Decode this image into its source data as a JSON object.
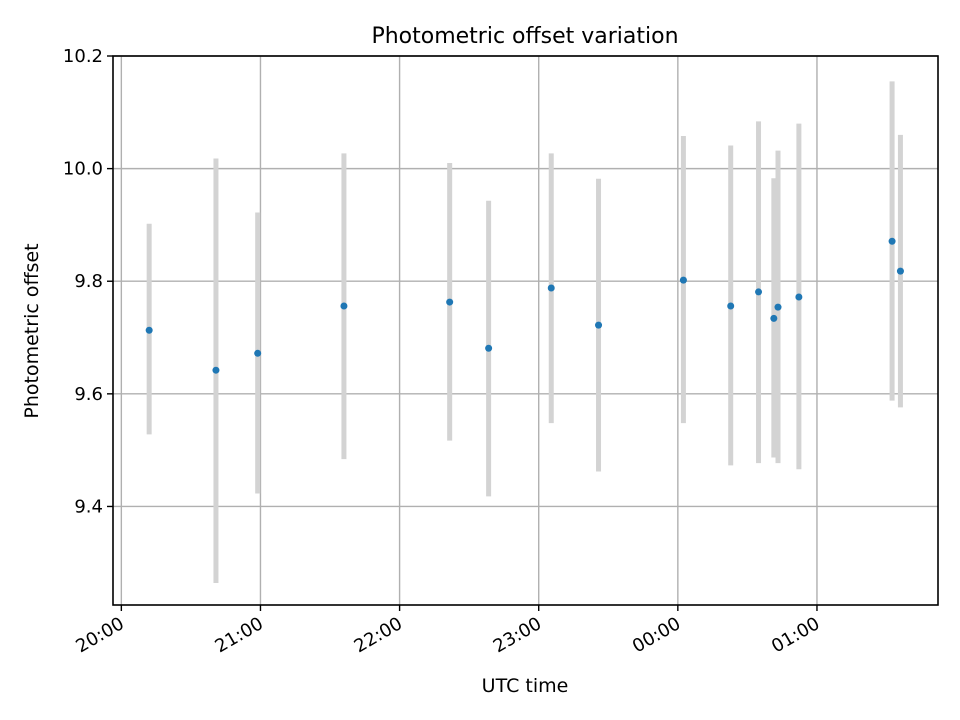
{
  "chart_data": {
    "type": "scatter",
    "title": "Photometric offset variation",
    "xlabel": "UTC time",
    "ylabel": "Photometric offset",
    "grid": true,
    "x_unit": "hours since 20:00 UTC",
    "xlim": [
      -0.06,
      5.87
    ],
    "ylim": [
      9.225,
      10.2
    ],
    "x_ticks": [
      {
        "value": 0,
        "label": "20:00"
      },
      {
        "value": 1,
        "label": "21:00"
      },
      {
        "value": 2,
        "label": "22:00"
      },
      {
        "value": 3,
        "label": "23:00"
      },
      {
        "value": 4,
        "label": "00:00"
      },
      {
        "value": 5,
        "label": "01:00"
      }
    ],
    "y_ticks": [
      {
        "value": 9.4,
        "label": "9.4"
      },
      {
        "value": 9.6,
        "label": "9.6"
      },
      {
        "value": 9.8,
        "label": "9.8"
      },
      {
        "value": 10.0,
        "label": "10.0"
      },
      {
        "value": 10.2,
        "label": "10.2"
      }
    ],
    "point_color": "#1f77b4",
    "errorbar_color": "#d3d3d3",
    "points": [
      {
        "x": 0.2,
        "y": 9.713,
        "low": 9.528,
        "high": 9.902
      },
      {
        "x": 0.68,
        "y": 9.642,
        "low": 9.264,
        "high": 10.018
      },
      {
        "x": 0.98,
        "y": 9.672,
        "low": 9.423,
        "high": 9.922
      },
      {
        "x": 1.6,
        "y": 9.756,
        "low": 9.484,
        "high": 10.027
      },
      {
        "x": 2.36,
        "y": 9.763,
        "low": 9.517,
        "high": 10.01
      },
      {
        "x": 2.64,
        "y": 9.681,
        "low": 9.418,
        "high": 9.943
      },
      {
        "x": 3.09,
        "y": 9.788,
        "low": 9.548,
        "high": 10.027
      },
      {
        "x": 3.43,
        "y": 9.722,
        "low": 9.462,
        "high": 9.982
      },
      {
        "x": 4.04,
        "y": 9.802,
        "low": 9.548,
        "high": 10.058
      },
      {
        "x": 4.38,
        "y": 9.756,
        "low": 9.473,
        "high": 10.041
      },
      {
        "x": 4.58,
        "y": 9.781,
        "low": 9.477,
        "high": 10.084
      },
      {
        "x": 4.69,
        "y": 9.734,
        "low": 9.487,
        "high": 9.983
      },
      {
        "x": 4.72,
        "y": 9.754,
        "low": 9.477,
        "high": 10.032
      },
      {
        "x": 4.87,
        "y": 9.772,
        "low": 9.466,
        "high": 10.08
      },
      {
        "x": 5.54,
        "y": 9.871,
        "low": 9.588,
        "high": 10.155
      },
      {
        "x": 5.6,
        "y": 9.818,
        "low": 9.576,
        "high": 10.06
      }
    ]
  }
}
